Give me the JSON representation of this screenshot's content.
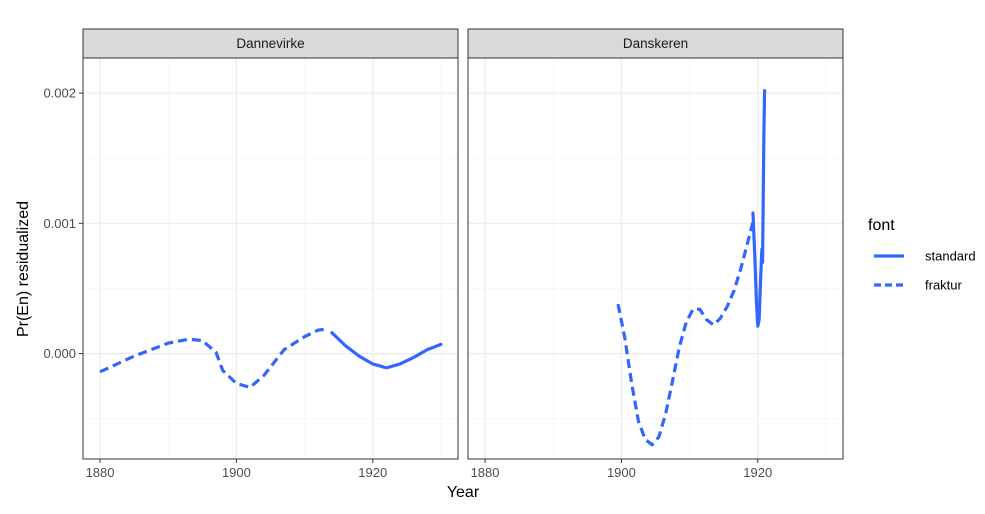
{
  "chart_data": {
    "type": "line",
    "xlabel": "Year",
    "ylabel": "Pr(En) residualized",
    "x_ticks": [
      1880,
      1900,
      1920
    ],
    "y_ticks": [
      0.0,
      0.001,
      0.002
    ],
    "y_tick_labels": [
      "0.000",
      "0.001",
      "0.002"
    ],
    "xlim": [
      1877.5,
      1932.5
    ],
    "ylim": [
      -0.00081,
      0.00227
    ],
    "grid": true,
    "color": "#3366ff",
    "legend": {
      "title": "font",
      "placement": "right",
      "entries": [
        {
          "label": "standard",
          "linetype": "solid"
        },
        {
          "label": "fraktur",
          "linetype": "dashed"
        }
      ]
    },
    "panels": [
      {
        "title": "Dannevirke",
        "series": [
          {
            "name": "fraktur",
            "linetype": "dashed",
            "points": [
              [
                1880,
                -0.00014
              ],
              [
                1885,
                -2e-05
              ],
              [
                1890,
                8e-05
              ],
              [
                1893,
                0.00011
              ],
              [
                1895,
                0.0001
              ],
              [
                1897,
                1e-05
              ],
              [
                1898,
                -0.00013
              ],
              [
                1900,
                -0.00023
              ],
              [
                1902,
                -0.00026
              ],
              [
                1904,
                -0.00017
              ],
              [
                1907,
                3e-05
              ],
              [
                1910,
                0.00013
              ],
              [
                1912,
                0.00018
              ],
              [
                1913.5,
                0.00019
              ]
            ]
          },
          {
            "name": "standard",
            "linetype": "solid",
            "points": [
              [
                1914,
                0.00016
              ],
              [
                1916,
                6e-05
              ],
              [
                1918,
                -2e-05
              ],
              [
                1920,
                -8e-05
              ],
              [
                1922,
                -0.00011
              ],
              [
                1924,
                -8e-05
              ],
              [
                1926,
                -3e-05
              ],
              [
                1928,
                3e-05
              ],
              [
                1930,
                7e-05
              ]
            ]
          }
        ]
      },
      {
        "title": "Danskeren",
        "series": [
          {
            "name": "fraktur",
            "linetype": "dashed",
            "points": [
              [
                1899.5,
                0.00038
              ],
              [
                1900.5,
                0.00012
              ],
              [
                1901.5,
                -0.00023
              ],
              [
                1902.5,
                -0.00052
              ],
              [
                1903.5,
                -0.00066
              ],
              [
                1904.5,
                -0.0007
              ],
              [
                1905.5,
                -0.00064
              ],
              [
                1906.5,
                -0.00046
              ],
              [
                1907.5,
                -0.00021
              ],
              [
                1908.5,
                5e-05
              ],
              [
                1909.5,
                0.00024
              ],
              [
                1910.5,
                0.00034
              ],
              [
                1911.5,
                0.00034
              ],
              [
                1912.5,
                0.00026
              ],
              [
                1913.5,
                0.00022
              ],
              [
                1914.5,
                0.00027
              ],
              [
                1915.5,
                0.00036
              ],
              [
                1916.5,
                0.00048
              ],
              [
                1917.5,
                0.00065
              ],
              [
                1918.5,
                0.00085
              ],
              [
                1919.3,
                0.00101
              ]
            ]
          },
          {
            "name": "standard",
            "linetype": "solid",
            "points": [
              [
                1919.3,
                0.00108
              ],
              [
                1919.6,
                0.0007
              ],
              [
                1919.8,
                0.0004
              ],
              [
                1920.0,
                0.00021
              ],
              [
                1920.2,
                0.00026
              ],
              [
                1920.4,
                0.00055
              ],
              [
                1920.6,
                0.0008
              ],
              [
                1920.7,
                0.0007
              ],
              [
                1920.8,
                0.0012
              ],
              [
                1920.9,
                0.0017
              ],
              [
                1921.0,
                0.00202
              ]
            ]
          }
        ]
      }
    ]
  }
}
